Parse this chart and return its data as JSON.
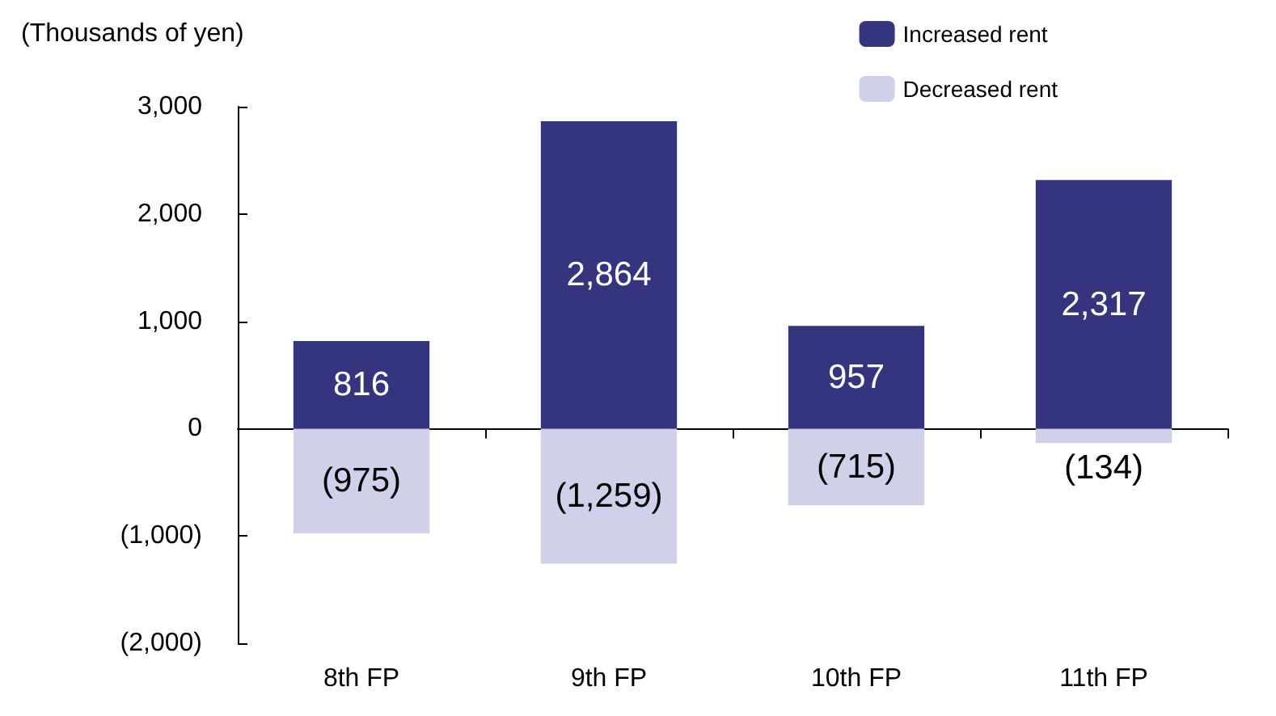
{
  "chart_data": {
    "type": "bar",
    "ylabel": "(Thousands of yen)",
    "categories": [
      "8th FP",
      "9th FP",
      "10th FP",
      "11th FP"
    ],
    "stacked": true,
    "series": [
      {
        "name": "Increased rent",
        "color": "#35357f",
        "values": [
          816,
          2864,
          957,
          2317
        ],
        "value_labels": [
          "816",
          "2,864",
          "957",
          "2,317"
        ]
      },
      {
        "name": "Decreased rent",
        "color": "#d0d0ea",
        "values": [
          -975,
          -1259,
          -715,
          -134
        ],
        "value_labels": [
          "(975)",
          "(1,259)",
          "(715)",
          "(134)"
        ]
      }
    ],
    "ylim": [
      -2000,
      3000
    ],
    "yticks": [
      {
        "value": -2000,
        "label": "(2,000)"
      },
      {
        "value": -1000,
        "label": "(1,000)"
      },
      {
        "value": 0,
        "label": "0"
      },
      {
        "value": 1000,
        "label": "1,000"
      },
      {
        "value": 2000,
        "label": "2,000"
      },
      {
        "value": 3000,
        "label": "3,000"
      }
    ],
    "legend": "top right"
  }
}
